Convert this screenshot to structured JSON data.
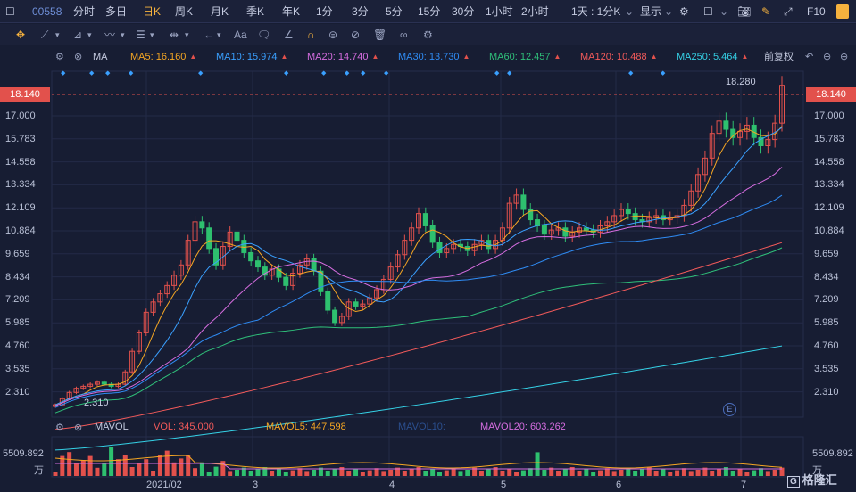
{
  "topbar": {
    "stock_code": "00558",
    "periods": [
      "分时",
      "多日",
      "日K",
      "周K",
      "月K",
      "季K",
      "年K",
      "1分",
      "3分",
      "5分",
      "15分",
      "30分",
      "1小时",
      "2小时"
    ],
    "active_period": "日K",
    "interval_select": "1天 : 1分K",
    "display_label": "显示",
    "f10_label": "F10"
  },
  "toolbar": {
    "text_tool_label": "Aa"
  },
  "ma_bar": {
    "type_label": "MA",
    "items": [
      {
        "label": "MA5: 16.160",
        "color": "#f5a623"
      },
      {
        "label": "MA10: 15.974",
        "color": "#3aa0ff"
      },
      {
        "label": "MA20: 14.740",
        "color": "#d66de0"
      },
      {
        "label": "MA30: 13.730",
        "color": "#2f8cf5"
      },
      {
        "label": "MA60: 12.457",
        "color": "#2fc07a"
      },
      {
        "label": "MA120: 10.488",
        "color": "#f25a5a"
      },
      {
        "label": "MA250: 5.464",
        "color": "#35d1e6"
      }
    ],
    "adjust_label": "前复权"
  },
  "price_axis": {
    "ticks": [
      "17.000",
      "15.783",
      "14.558",
      "13.334",
      "12.109",
      "10.884",
      "9.659",
      "8.434",
      "7.209",
      "5.985",
      "4.760",
      "3.535",
      "2.310"
    ],
    "current_price": "18.140",
    "high_label": "18.280",
    "low_label": "2.310"
  },
  "volume_bar": {
    "type_label": "MAVOL",
    "items": [
      {
        "label": "VOL: 345.000",
        "color": "#f25a5a"
      },
      {
        "label": "MAVOL5: 447.598",
        "color": "#f5a623"
      },
      {
        "label": "MAVOL10:",
        "color": "#2b4f8f"
      },
      {
        "label": "MAVOL20: 603.262",
        "color": "#d66de0"
      }
    ],
    "axis_value": "5509.892",
    "axis_unit": "万"
  },
  "x_axis": {
    "labels": [
      "2021/02",
      "3",
      "4",
      "5",
      "6",
      "7"
    ]
  },
  "event_marker": "E",
  "watermark": "格隆汇",
  "colors": {
    "up": "#e2514c",
    "down": "#2ec06f",
    "bg": "#171d33",
    "grid": "#232a47"
  },
  "chart_data": {
    "type": "candlestick",
    "title": "",
    "ylim": [
      2.0,
      18.3
    ],
    "price_points": [
      2.6,
      2.9,
      3.2,
      3.4,
      3.5,
      3.6,
      3.7,
      3.6,
      3.5,
      3.6,
      4.2,
      5.2,
      6.1,
      7.1,
      7.6,
      8.0,
      8.4,
      8.9,
      9.4,
      10.6,
      11.5,
      11.2,
      10.2,
      9.4,
      10.3,
      11.0,
      10.6,
      10.0,
      9.6,
      9.3,
      8.9,
      9.2,
      8.8,
      8.4,
      9.0,
      9.4,
      9.7,
      9.1,
      8.1,
      7.2,
      6.6,
      6.9,
      7.6,
      7.4,
      7.5,
      7.8,
      8.2,
      8.7,
      9.3,
      9.9,
      10.6,
      11.2,
      11.9,
      11.3,
      10.5,
      10.0,
      10.2,
      10.4,
      10.3,
      10.1,
      10.4,
      10.6,
      10.2,
      10.6,
      11.2,
      12.4,
      12.8,
      12.1,
      11.6,
      11.3,
      10.9,
      11.1,
      11.2,
      10.8,
      11.0,
      11.2,
      11.1,
      11.0,
      11.3,
      11.5,
      11.8,
      12.1,
      11.9,
      11.6,
      11.5,
      11.7,
      11.8,
      11.6,
      11.7,
      11.8,
      12.3,
      13.0,
      13.8,
      14.6,
      15.8,
      16.4,
      16.0,
      15.6,
      15.9,
      16.2,
      15.6,
      15.2,
      15.5,
      16.3,
      18.14
    ],
    "ma_final": {
      "MA5": 16.16,
      "MA10": 15.974,
      "MA20": 14.74,
      "MA30": 13.73,
      "MA60": 12.457,
      "MA120": 10.488,
      "MA250": 5.464
    }
  }
}
